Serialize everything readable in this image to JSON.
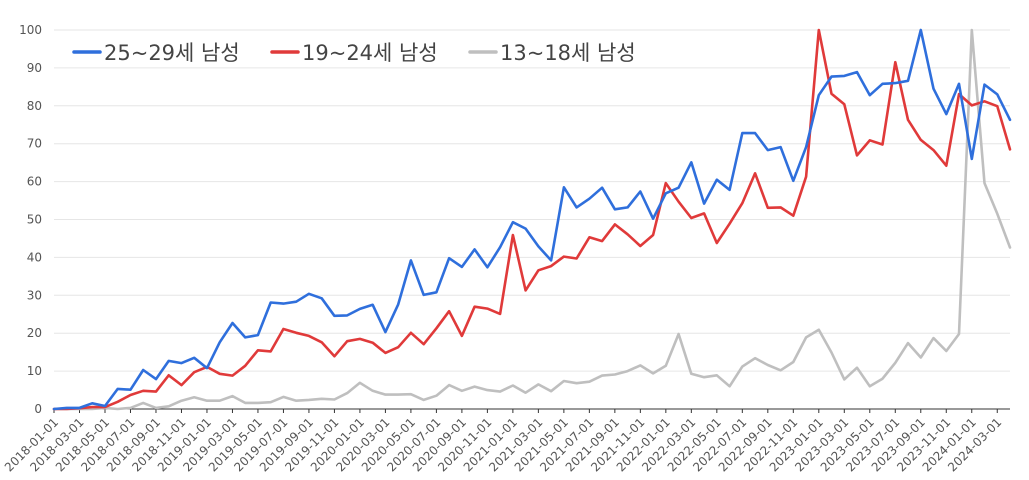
{
  "chart_data": {
    "type": "line",
    "title": "",
    "xlabel": "",
    "ylabel": "",
    "ylim": [
      0,
      100
    ],
    "y_ticks": [
      0,
      10,
      20,
      30,
      40,
      50,
      60,
      70,
      80,
      90,
      100
    ],
    "grid": "horizontal",
    "legend_position": "top-left",
    "x": [
      "2018-01-01",
      "2018-02-01",
      "2018-03-01",
      "2018-04-01",
      "2018-05-01",
      "2018-06-01",
      "2018-07-01",
      "2018-08-01",
      "2018-09-01",
      "2018-10-01",
      "2018-11-01",
      "2018-12-01",
      "2019-01-01",
      "2019-02-01",
      "2019-03-01",
      "2019-04-01",
      "2019-05-01",
      "2019-06-01",
      "2019-07-01",
      "2019-08-01",
      "2019-09-01",
      "2019-10-01",
      "2019-11-01",
      "2019-12-01",
      "2020-01-01",
      "2020-02-01",
      "2020-03-01",
      "2020-04-01",
      "2020-05-01",
      "2020-06-01",
      "2020-07-01",
      "2020-08-01",
      "2020-09-01",
      "2020-10-01",
      "2020-11-01",
      "2020-12-01",
      "2021-01-01",
      "2021-02-01",
      "2021-03-01",
      "2021-04-01",
      "2021-05-01",
      "2021-06-01",
      "2021-07-01",
      "2021-08-01",
      "2021-09-01",
      "2021-10-01",
      "2021-11-01",
      "2021-12-01",
      "2022-01-01",
      "2022-02-01",
      "2022-03-01",
      "2022-04-01",
      "2022-05-01",
      "2022-06-01",
      "2022-07-01",
      "2022-08-01",
      "2022-09-01",
      "2022-10-01",
      "2022-11-01",
      "2022-12-01",
      "2023-01-01",
      "2023-02-01",
      "2023-03-01",
      "2023-04-01",
      "2023-05-01",
      "2023-06-01",
      "2023-07-01",
      "2023-08-01",
      "2023-09-01",
      "2023-10-01",
      "2023-11-01",
      "2023-12-01",
      "2024-01-01",
      "2024-02-01",
      "2024-03-01",
      "2024-04-01"
    ],
    "x_tick_labels": [
      "2018-01-01",
      "2018-03-01",
      "2018-05-01",
      "2018-07-01",
      "2018-09-01",
      "2018-11-01",
      "2019-01-01",
      "2019-03-01",
      "2019-05-01",
      "2019-07-01",
      "2019-09-01",
      "2019-11-01",
      "2020-01-01",
      "2020-03-01",
      "2020-05-01",
      "2020-07-01",
      "2020-09-01",
      "2020-11-01",
      "2021-01-01",
      "2021-03-01",
      "2021-05-01",
      "2021-07-01",
      "2021-09-01",
      "2021-11-01",
      "2022-01-01",
      "2022-03-01",
      "2022-05-01",
      "2022-07-01",
      "2022-09-01",
      "2022-11-01",
      "2023-01-01",
      "2023-03-01",
      "2023-05-01",
      "2023-07-01",
      "2023-09-01",
      "2023-11-01",
      "2024-01-01",
      "2024-03-01"
    ],
    "series": [
      {
        "name": "25~29세 남성",
        "color": "#2f6fdc",
        "values": [
          0,
          0.3,
          0.3,
          1.5,
          0.8,
          5.3,
          5.1,
          10.3,
          7.9,
          12.7,
          12.1,
          13.5,
          10.8,
          17.6,
          22.7,
          18.9,
          19.5,
          28.1,
          27.8,
          28.3,
          30.4,
          29.2,
          24.6,
          24.7,
          26.4,
          27.5,
          20.3,
          27.6,
          39.2,
          30.1,
          30.8,
          39.8,
          37.5,
          42.1,
          37.4,
          42.7,
          49.3,
          47.6,
          42.9,
          39.2,
          58.5,
          53.2,
          55.5,
          58.4,
          52.7,
          53.2,
          57.4,
          50.2,
          56.9,
          58.4,
          65.1,
          54.2,
          60.5,
          57.8,
          72.8,
          72.8,
          68.3,
          69.1,
          60.2,
          69.1,
          82.8,
          87.7,
          87.9,
          88.9,
          82.8,
          85.8,
          86.0,
          86.6,
          100,
          84.5,
          77.8,
          85.8,
          66.0,
          85.6,
          83.0,
          76.3
        ]
      },
      {
        "name": "19~24세 남성",
        "color": "#e03a3a",
        "values": [
          0,
          0,
          0.2,
          0.5,
          0.5,
          1.9,
          3.7,
          4.8,
          4.6,
          8.9,
          6.3,
          9.7,
          11.1,
          9.3,
          8.8,
          11.4,
          15.5,
          15.2,
          21.1,
          20.1,
          19.3,
          17.6,
          13.9,
          17.9,
          18.5,
          17.5,
          14.8,
          16.3,
          20.1,
          17.1,
          21.3,
          25.8,
          19.3,
          27.0,
          26.5,
          25.1,
          45.9,
          31.3,
          36.6,
          37.7,
          40.2,
          39.7,
          45.3,
          44.3,
          48.7,
          46.1,
          43.0,
          45.9,
          59.6,
          54.7,
          50.4,
          51.6,
          43.8,
          48.9,
          54.3,
          62.2,
          53.1,
          53.2,
          51.0,
          61.3,
          100,
          83.2,
          80.4,
          66.9,
          70.9,
          69.8,
          91.5,
          76.3,
          71.0,
          68.3,
          64.2,
          83.1,
          80.1,
          81.2,
          79.9,
          68.5
        ]
      },
      {
        "name": "13~18세 남성",
        "color": "#bfbfbf",
        "values": [
          0,
          0,
          0,
          0,
          0.3,
          0,
          0.3,
          1.6,
          0.3,
          0.7,
          2.2,
          3.1,
          2.2,
          2.2,
          3.4,
          1.6,
          1.6,
          1.8,
          3.2,
          2.2,
          2.4,
          2.7,
          2.5,
          4.2,
          6.9,
          4.8,
          3.8,
          3.8,
          3.9,
          2.4,
          3.5,
          6.3,
          4.8,
          5.9,
          5.0,
          4.6,
          6.2,
          4.3,
          6.5,
          4.7,
          7.4,
          6.8,
          7.2,
          8.8,
          9.1,
          10.0,
          11.5,
          9.4,
          11.4,
          19.8,
          9.3,
          8.4,
          8.9,
          6.0,
          11.2,
          13.4,
          11.6,
          10.2,
          12.4,
          18.9,
          20.9,
          14.9,
          7.8,
          10.9,
          6.0,
          8.0,
          12.2,
          17.4,
          13.6,
          18.7,
          15.3,
          19.8,
          100,
          59.6,
          51.5,
          42.6
        ]
      }
    ]
  }
}
